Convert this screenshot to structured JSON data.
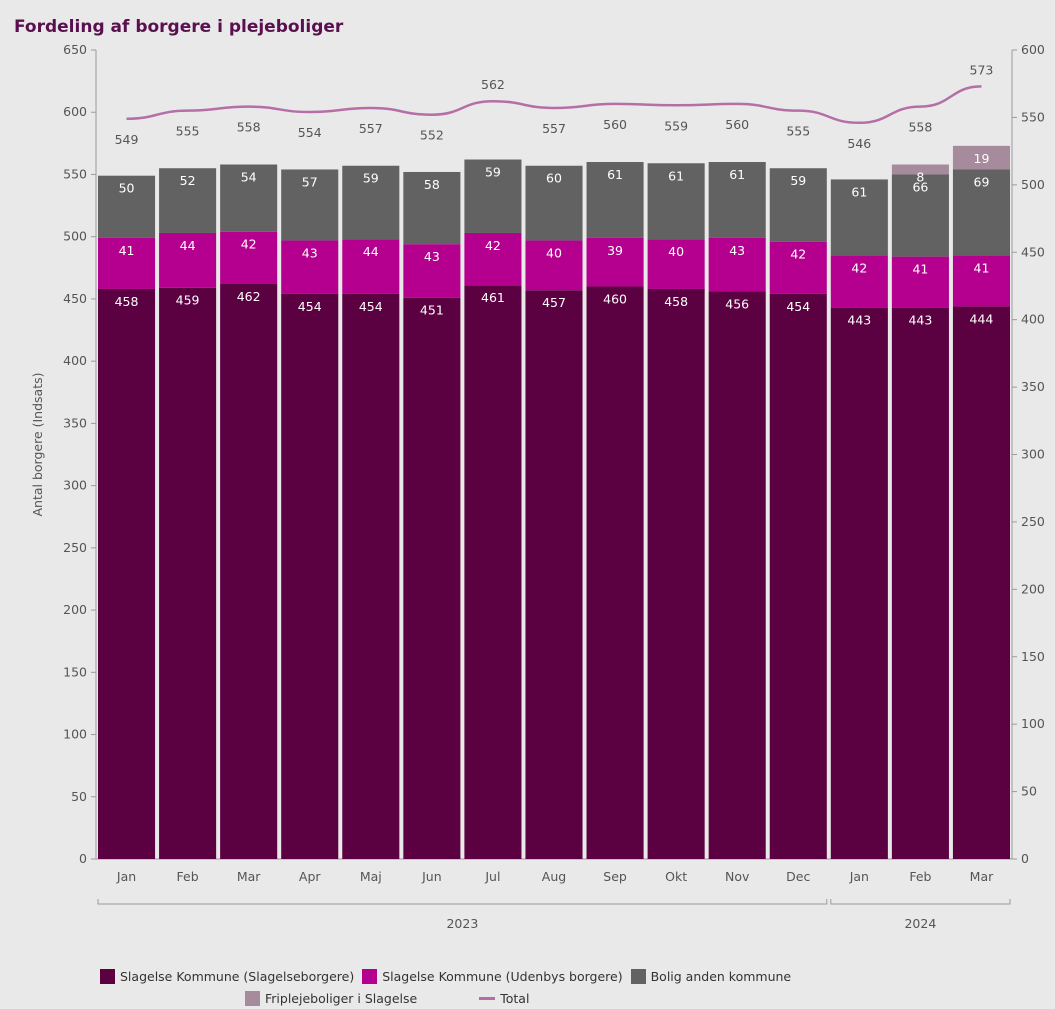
{
  "chart_title": "Fordeling af borgere i plejeboliger",
  "chart_data": {
    "type": "bar",
    "title": "Fordeling af borgere i plejeboliger",
    "ylabel": "Antal borgere (Indsats)",
    "ylim": [
      0,
      650
    ],
    "y2lim": [
      0,
      600
    ],
    "yticks": [
      "0",
      "50",
      "100",
      "150",
      "200",
      "250",
      "300",
      "350",
      "400",
      "450",
      "500",
      "550",
      "600",
      "650"
    ],
    "y2ticks": [
      "0",
      "50",
      "100",
      "150",
      "200",
      "250",
      "300",
      "350",
      "400",
      "450",
      "500",
      "550",
      "600"
    ],
    "categories": [
      "Jan",
      "Feb",
      "Mar",
      "Apr",
      "Maj",
      "Jun",
      "Jul",
      "Aug",
      "Sep",
      "Okt",
      "Nov",
      "Dec",
      "Jan",
      "Feb",
      "Mar"
    ],
    "groups": [
      {
        "label": "2023",
        "from": 0,
        "to": 11
      },
      {
        "label": "2024",
        "from": 12,
        "to": 14
      }
    ],
    "stacked": true,
    "series": [
      {
        "name": "Slagelse Kommune (Slagelseborgere)",
        "color": "#5b0040",
        "values": [
          458,
          459,
          462,
          454,
          454,
          451,
          461,
          457,
          460,
          458,
          456,
          454,
          443,
          443,
          444
        ]
      },
      {
        "name": "Slagelse Kommune (Udenbys borgere)",
        "color": "#b5008f",
        "values": [
          41,
          44,
          42,
          43,
          44,
          43,
          42,
          40,
          39,
          40,
          43,
          42,
          42,
          41,
          41
        ]
      },
      {
        "name": "Bolig anden kommune",
        "color": "#626262",
        "values": [
          50,
          52,
          54,
          57,
          59,
          58,
          59,
          60,
          61,
          61,
          61,
          59,
          61,
          66,
          69
        ]
      },
      {
        "name": "Friplejeboliger i Slagelse",
        "color": "#a58b9c",
        "values": [
          null,
          null,
          null,
          null,
          null,
          null,
          null,
          null,
          null,
          null,
          null,
          null,
          null,
          8,
          19
        ]
      },
      {
        "name": "Total",
        "color": "#b56fa6",
        "type": "line",
        "values": [
          549,
          555,
          558,
          554,
          557,
          552,
          562,
          557,
          560,
          559,
          560,
          555,
          546,
          558,
          573
        ]
      }
    ],
    "legend_position": "bottom"
  }
}
